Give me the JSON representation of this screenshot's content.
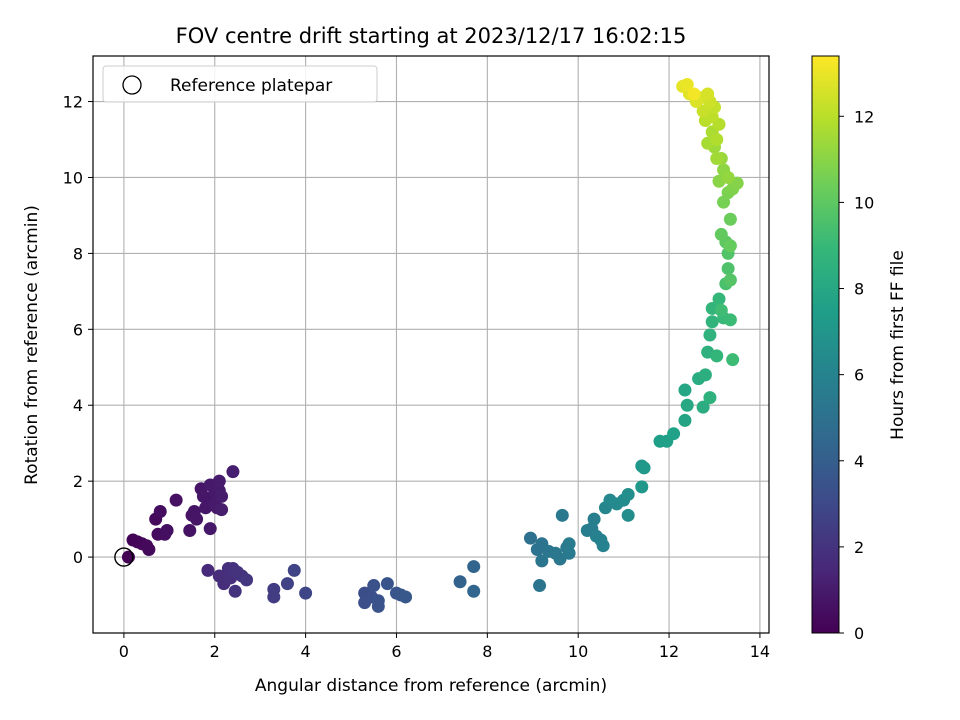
{
  "chart_data": {
    "type": "scatter",
    "title": "FOV centre drift starting at 2023/12/17 16:02:15",
    "xlabel": "Angular distance from reference (arcmin)",
    "ylabel": "Rotation from reference (arcmin)",
    "xlim": [
      -0.68,
      14.2
    ],
    "ylim": [
      -2.0,
      13.2
    ],
    "xticks": [
      0,
      2,
      4,
      6,
      8,
      10,
      12,
      14
    ],
    "yticks": [
      0,
      2,
      4,
      6,
      8,
      10,
      12
    ],
    "grid": true,
    "legend": {
      "placement": "top-left",
      "entries": [
        "Reference platepar"
      ]
    },
    "reference_point": {
      "x": 0,
      "y": 0
    },
    "colorbar": {
      "label": "Hours from first FF file",
      "colormap": "viridis",
      "range": [
        0,
        13.4
      ],
      "ticks": [
        0,
        2,
        4,
        6,
        8,
        10,
        12
      ]
    },
    "colormap_stops": [
      "#440154",
      "#482878",
      "#3e4989",
      "#31688e",
      "#26828e",
      "#1f9e89",
      "#35b779",
      "#6ece58",
      "#b5de2b",
      "#fde725"
    ],
    "points": [
      {
        "x": 0.1,
        "y": 0.0,
        "t": 0.05
      },
      {
        "x": 0.2,
        "y": 0.45,
        "t": 0.1
      },
      {
        "x": 0.3,
        "y": 0.4,
        "t": 0.15
      },
      {
        "x": 0.4,
        "y": 0.35,
        "t": 0.2
      },
      {
        "x": 0.5,
        "y": 0.3,
        "t": 0.25
      },
      {
        "x": 0.55,
        "y": 0.2,
        "t": 0.3
      },
      {
        "x": 0.7,
        "y": 1.0,
        "t": 0.35
      },
      {
        "x": 0.75,
        "y": 0.6,
        "t": 0.4
      },
      {
        "x": 0.8,
        "y": 1.2,
        "t": 0.45
      },
      {
        "x": 0.9,
        "y": 0.6,
        "t": 0.5
      },
      {
        "x": 0.95,
        "y": 0.7,
        "t": 0.55
      },
      {
        "x": 1.15,
        "y": 1.5,
        "t": 0.6
      },
      {
        "x": 1.45,
        "y": 0.7,
        "t": 0.65
      },
      {
        "x": 1.5,
        "y": 1.1,
        "t": 0.7
      },
      {
        "x": 1.55,
        "y": 1.2,
        "t": 0.72
      },
      {
        "x": 1.6,
        "y": 1.0,
        "t": 0.75
      },
      {
        "x": 1.7,
        "y": 1.8,
        "t": 0.78
      },
      {
        "x": 1.75,
        "y": 1.6,
        "t": 0.8
      },
      {
        "x": 1.8,
        "y": 1.3,
        "t": 0.82
      },
      {
        "x": 1.85,
        "y": 1.5,
        "t": 0.85
      },
      {
        "x": 1.9,
        "y": 0.75,
        "t": 0.87
      },
      {
        "x": 1.9,
        "y": 1.9,
        "t": 0.9
      },
      {
        "x": 2.0,
        "y": 1.7,
        "t": 0.92
      },
      {
        "x": 2.0,
        "y": 1.4,
        "t": 0.95
      },
      {
        "x": 2.05,
        "y": 1.3,
        "t": 0.97
      },
      {
        "x": 2.1,
        "y": 1.75,
        "t": 1.0
      },
      {
        "x": 2.1,
        "y": 2.0,
        "t": 1.02
      },
      {
        "x": 2.15,
        "y": 1.25,
        "t": 1.05
      },
      {
        "x": 2.15,
        "y": 1.6,
        "t": 1.07
      },
      {
        "x": 2.4,
        "y": 2.25,
        "t": 1.1
      },
      {
        "x": 1.85,
        "y": -0.35,
        "t": 1.6
      },
      {
        "x": 2.1,
        "y": -0.5,
        "t": 1.7
      },
      {
        "x": 2.2,
        "y": -0.7,
        "t": 1.75
      },
      {
        "x": 2.3,
        "y": -0.3,
        "t": 1.8
      },
      {
        "x": 2.35,
        "y": -0.55,
        "t": 1.85
      },
      {
        "x": 2.4,
        "y": -0.3,
        "t": 1.9
      },
      {
        "x": 2.45,
        "y": -0.9,
        "t": 1.95
      },
      {
        "x": 2.5,
        "y": -0.4,
        "t": 2.0
      },
      {
        "x": 2.6,
        "y": -0.5,
        "t": 2.05
      },
      {
        "x": 2.7,
        "y": -0.6,
        "t": 2.1
      },
      {
        "x": 3.3,
        "y": -0.85,
        "t": 2.4
      },
      {
        "x": 3.3,
        "y": -1.05,
        "t": 2.45
      },
      {
        "x": 3.6,
        "y": -0.7,
        "t": 2.6
      },
      {
        "x": 3.75,
        "y": -0.35,
        "t": 2.7
      },
      {
        "x": 4.0,
        "y": -0.95,
        "t": 2.85
      },
      {
        "x": 5.3,
        "y": -0.95,
        "t": 3.2
      },
      {
        "x": 5.3,
        "y": -1.2,
        "t": 3.25
      },
      {
        "x": 5.45,
        "y": -1.05,
        "t": 3.3
      },
      {
        "x": 5.5,
        "y": -0.75,
        "t": 3.35
      },
      {
        "x": 5.6,
        "y": -1.15,
        "t": 3.4
      },
      {
        "x": 5.6,
        "y": -1.3,
        "t": 3.45
      },
      {
        "x": 5.8,
        "y": -0.7,
        "t": 3.5
      },
      {
        "x": 6.0,
        "y": -0.95,
        "t": 3.55
      },
      {
        "x": 6.1,
        "y": -1.0,
        "t": 3.6
      },
      {
        "x": 6.2,
        "y": -1.05,
        "t": 3.65
      },
      {
        "x": 7.4,
        "y": -0.65,
        "t": 4.2
      },
      {
        "x": 7.7,
        "y": -0.25,
        "t": 4.3
      },
      {
        "x": 7.7,
        "y": -0.9,
        "t": 4.35
      },
      {
        "x": 8.95,
        "y": 0.5,
        "t": 5.0
      },
      {
        "x": 9.1,
        "y": 0.2,
        "t": 5.05
      },
      {
        "x": 9.15,
        "y": -0.75,
        "t": 5.1
      },
      {
        "x": 9.2,
        "y": 0.35,
        "t": 5.15
      },
      {
        "x": 9.2,
        "y": -0.1,
        "t": 5.2
      },
      {
        "x": 9.35,
        "y": 0.15,
        "t": 5.25
      },
      {
        "x": 9.5,
        "y": 0.1,
        "t": 5.3
      },
      {
        "x": 9.6,
        "y": -0.05,
        "t": 5.35
      },
      {
        "x": 9.65,
        "y": 1.1,
        "t": 5.4
      },
      {
        "x": 9.75,
        "y": 0.25,
        "t": 5.45
      },
      {
        "x": 9.8,
        "y": 0.1,
        "t": 5.5
      },
      {
        "x": 9.8,
        "y": 0.35,
        "t": 5.55
      },
      {
        "x": 10.2,
        "y": 0.7,
        "t": 5.7
      },
      {
        "x": 10.3,
        "y": 0.75,
        "t": 5.75
      },
      {
        "x": 10.35,
        "y": 1.0,
        "t": 5.8
      },
      {
        "x": 10.4,
        "y": 0.55,
        "t": 5.85
      },
      {
        "x": 10.5,
        "y": 0.45,
        "t": 5.9
      },
      {
        "x": 10.55,
        "y": 0.3,
        "t": 5.95
      },
      {
        "x": 10.6,
        "y": 1.3,
        "t": 6.2
      },
      {
        "x": 10.7,
        "y": 1.5,
        "t": 6.3
      },
      {
        "x": 10.85,
        "y": 1.4,
        "t": 6.4
      },
      {
        "x": 11.0,
        "y": 1.5,
        "t": 6.5
      },
      {
        "x": 11.1,
        "y": 1.1,
        "t": 6.55
      },
      {
        "x": 11.1,
        "y": 1.65,
        "t": 6.6
      },
      {
        "x": 11.4,
        "y": 2.4,
        "t": 7.0
      },
      {
        "x": 11.4,
        "y": 1.85,
        "t": 7.1
      },
      {
        "x": 11.45,
        "y": 2.35,
        "t": 7.15
      },
      {
        "x": 11.8,
        "y": 3.05,
        "t": 7.5
      },
      {
        "x": 11.95,
        "y": 3.05,
        "t": 7.55
      },
      {
        "x": 12.1,
        "y": 3.25,
        "t": 7.6
      },
      {
        "x": 12.35,
        "y": 3.6,
        "t": 7.8
      },
      {
        "x": 12.35,
        "y": 4.4,
        "t": 7.9
      },
      {
        "x": 12.4,
        "y": 4.0,
        "t": 8.0
      },
      {
        "x": 12.65,
        "y": 4.7,
        "t": 8.2
      },
      {
        "x": 12.75,
        "y": 3.95,
        "t": 8.3
      },
      {
        "x": 12.8,
        "y": 4.8,
        "t": 8.4
      },
      {
        "x": 12.85,
        "y": 5.4,
        "t": 8.5
      },
      {
        "x": 12.9,
        "y": 4.2,
        "t": 8.55
      },
      {
        "x": 12.9,
        "y": 5.85,
        "t": 8.6
      },
      {
        "x": 12.95,
        "y": 6.2,
        "t": 8.7
      },
      {
        "x": 12.95,
        "y": 6.55,
        "t": 8.75
      },
      {
        "x": 13.05,
        "y": 5.3,
        "t": 8.8
      },
      {
        "x": 13.1,
        "y": 6.8,
        "t": 8.9
      },
      {
        "x": 13.2,
        "y": 6.3,
        "t": 9.0
      },
      {
        "x": 13.35,
        "y": 6.25,
        "t": 9.1
      },
      {
        "x": 13.4,
        "y": 5.2,
        "t": 9.15
      },
      {
        "x": 13.15,
        "y": 6.5,
        "t": 9.2
      },
      {
        "x": 13.25,
        "y": 7.2,
        "t": 9.5
      },
      {
        "x": 13.3,
        "y": 7.6,
        "t": 9.6
      },
      {
        "x": 13.3,
        "y": 8.0,
        "t": 9.7
      },
      {
        "x": 13.35,
        "y": 7.3,
        "t": 9.8
      },
      {
        "x": 13.25,
        "y": 8.3,
        "t": 10.0
      },
      {
        "x": 13.15,
        "y": 8.5,
        "t": 10.1
      },
      {
        "x": 13.35,
        "y": 8.2,
        "t": 10.2
      },
      {
        "x": 13.35,
        "y": 8.9,
        "t": 10.3
      },
      {
        "x": 13.2,
        "y": 9.35,
        "t": 10.6
      },
      {
        "x": 13.3,
        "y": 9.6,
        "t": 10.7
      },
      {
        "x": 13.4,
        "y": 9.7,
        "t": 10.8
      },
      {
        "x": 13.5,
        "y": 9.85,
        "t": 10.9
      },
      {
        "x": 13.1,
        "y": 9.9,
        "t": 11.0
      },
      {
        "x": 13.2,
        "y": 10.2,
        "t": 11.1
      },
      {
        "x": 13.3,
        "y": 10.0,
        "t": 11.2
      },
      {
        "x": 13.15,
        "y": 10.5,
        "t": 11.3
      },
      {
        "x": 13.0,
        "y": 10.8,
        "t": 11.4
      },
      {
        "x": 13.05,
        "y": 10.5,
        "t": 11.5
      },
      {
        "x": 12.85,
        "y": 10.9,
        "t": 11.6
      },
      {
        "x": 12.95,
        "y": 11.2,
        "t": 11.7
      },
      {
        "x": 13.05,
        "y": 11.0,
        "t": 11.8
      },
      {
        "x": 13.1,
        "y": 11.4,
        "t": 11.9
      },
      {
        "x": 12.8,
        "y": 11.5,
        "t": 12.0
      },
      {
        "x": 12.95,
        "y": 11.6,
        "t": 12.1
      },
      {
        "x": 13.0,
        "y": 11.85,
        "t": 12.2
      },
      {
        "x": 12.75,
        "y": 11.75,
        "t": 12.3
      },
      {
        "x": 12.9,
        "y": 12.0,
        "t": 12.4
      },
      {
        "x": 12.7,
        "y": 12.1,
        "t": 12.5
      },
      {
        "x": 12.85,
        "y": 12.2,
        "t": 12.6
      },
      {
        "x": 12.6,
        "y": 12.0,
        "t": 12.7
      },
      {
        "x": 12.45,
        "y": 12.2,
        "t": 12.8
      },
      {
        "x": 12.3,
        "y": 12.4,
        "t": 12.9
      },
      {
        "x": 12.4,
        "y": 12.45,
        "t": 13.0
      },
      {
        "x": 12.55,
        "y": 12.2,
        "t": 13.2
      }
    ]
  }
}
